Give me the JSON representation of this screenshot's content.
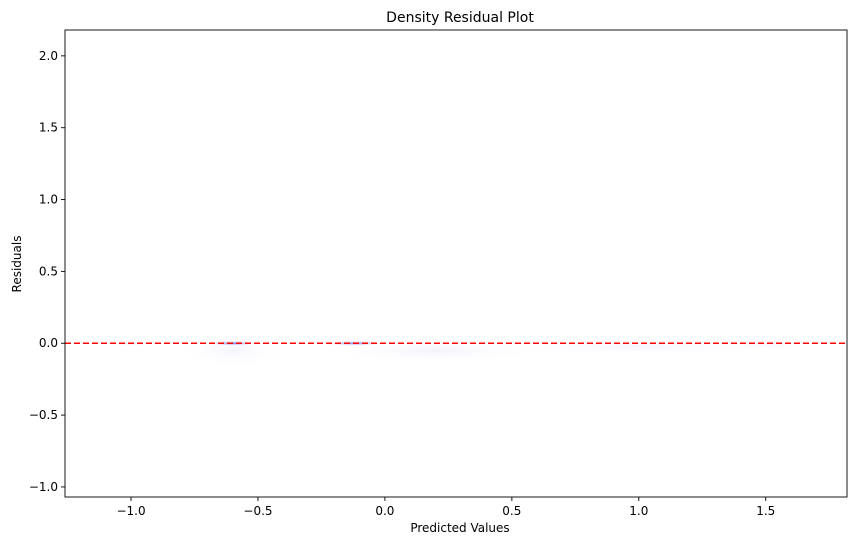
{
  "chart_data": {
    "type": "heatmap",
    "title": "Density Residual Plot",
    "xlabel": "Predicted Values",
    "ylabel": "Residuals",
    "xlim": [
      -1.26,
      1.82
    ],
    "ylim": [
      -1.07,
      2.18
    ],
    "xticks": [
      -1.0,
      -0.5,
      0.0,
      0.5,
      1.0,
      1.5
    ],
    "xtick_labels": [
      "−1.0",
      "−0.5",
      "0.0",
      "0.5",
      "1.0",
      "1.5"
    ],
    "yticks": [
      -1.0,
      -0.5,
      0.0,
      0.5,
      1.0,
      1.5,
      2.0
    ],
    "ytick_labels": [
      "−1.0",
      "−0.5",
      "0.0",
      "0.5",
      "1.0",
      "1.5",
      "2.0"
    ],
    "grid": false,
    "colormap": "Blues",
    "reference_line": {
      "y": 0.0,
      "color": "#ff0000",
      "style": "dashed"
    },
    "density_regions": [
      {
        "x_center": -1.0,
        "y_center": 0.0,
        "x_spread": 0.12,
        "y_spread": 0.02,
        "intensity": 0.12
      },
      {
        "x_center": -0.6,
        "y_center": 0.0,
        "x_spread": 0.1,
        "y_spread": 0.015,
        "intensity": 0.85
      },
      {
        "x_center": -0.6,
        "y_center": -0.05,
        "x_spread": 0.22,
        "y_spread": 0.12,
        "intensity": 0.06
      },
      {
        "x_center": -0.12,
        "y_center": 0.0,
        "x_spread": 0.12,
        "y_spread": 0.015,
        "intensity": 0.8
      },
      {
        "x_center": 0.2,
        "y_center": -0.05,
        "x_spread": 0.45,
        "y_spread": 0.09,
        "intensity": 0.07
      },
      {
        "x_center": 1.0,
        "y_center": -0.02,
        "x_spread": 0.65,
        "y_spread": 0.07,
        "intensity": 0.06
      },
      {
        "x_center": 1.5,
        "y_center": 0.0,
        "x_spread": 0.2,
        "y_spread": 0.05,
        "intensity": 0.05
      }
    ]
  }
}
